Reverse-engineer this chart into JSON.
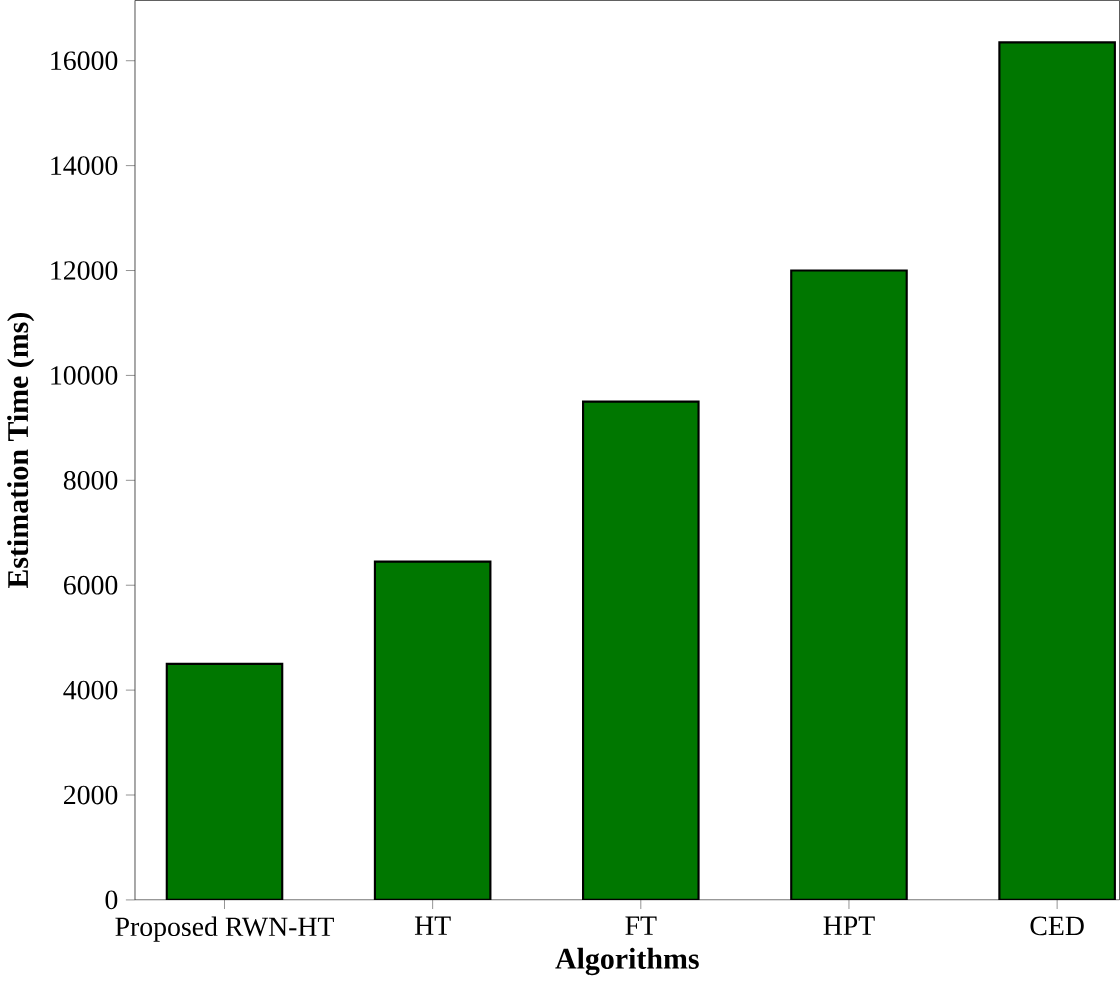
{
  "chart_data": {
    "type": "bar",
    "xlabel": "Algorithms",
    "ylabel": "Estimation Time (ms)",
    "categories": [
      "Proposed RWN-HT",
      "HT",
      "FT",
      "HPT",
      "CED"
    ],
    "values": [
      4500,
      6450,
      9500,
      12000,
      16350
    ],
    "color": "#007700",
    "ylim": [
      0,
      17150
    ],
    "yticks": [
      0,
      2000,
      4000,
      6000,
      8000,
      10000,
      12000,
      14000,
      16000
    ],
    "grid": false
  }
}
